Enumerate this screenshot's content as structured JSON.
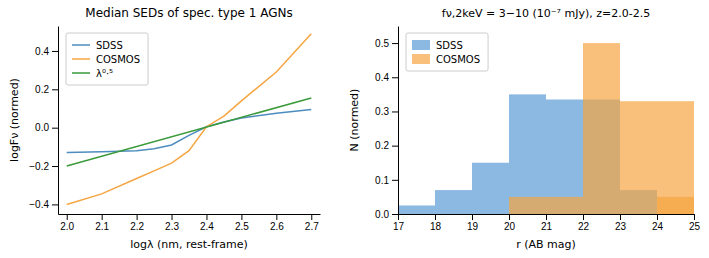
{
  "chart_data": [
    {
      "type": "line",
      "title": "Median SEDs of spec. type 1 AGNs",
      "x_label": "logλ (nm, rest-frame)",
      "y_label": "logFν (normed)",
      "xlim": [
        1.975,
        2.725
      ],
      "ylim": [
        -0.45,
        0.53
      ],
      "xticks": [
        {
          "value": 2.0,
          "label": "2.0"
        },
        {
          "value": 2.1,
          "label": "2.1"
        },
        {
          "value": 2.2,
          "label": "2.2"
        },
        {
          "value": 2.3,
          "label": "2.3"
        },
        {
          "value": 2.4,
          "label": "2.4"
        },
        {
          "value": 2.5,
          "label": "2.5"
        },
        {
          "value": 2.6,
          "label": "2.6"
        },
        {
          "value": 2.7,
          "label": "2.7"
        }
      ],
      "yticks": [
        {
          "value": -0.4,
          "label": "−0.4"
        },
        {
          "value": -0.2,
          "label": "−0.2"
        },
        {
          "value": 0.0,
          "label": "0.0"
        },
        0.2,
        0.4
      ],
      "legend": "upper left",
      "grid": false,
      "series": [
        {
          "name": "SDSS",
          "color": "#4c8cbf",
          "x": [
            2.0,
            2.1,
            2.2,
            2.25,
            2.3,
            2.35,
            2.4,
            2.45,
            2.5,
            2.6,
            2.7
          ],
          "values": [
            -0.13,
            -0.125,
            -0.12,
            -0.11,
            -0.09,
            -0.04,
            0.005,
            0.03,
            0.05,
            0.075,
            0.095
          ]
        },
        {
          "name": "COSMOS",
          "color": "#f5a542",
          "x": [
            2.0,
            2.1,
            2.2,
            2.25,
            2.3,
            2.35,
            2.4,
            2.45,
            2.5,
            2.6,
            2.7
          ],
          "values": [
            -0.4,
            -0.345,
            -0.265,
            -0.225,
            -0.185,
            -0.12,
            0.005,
            0.06,
            0.14,
            0.29,
            0.49
          ]
        },
        {
          "name": "λ⁰·⁵",
          "color": "#3a9a3a",
          "x": [
            2.0,
            2.7
          ],
          "values": [
            -0.2,
            0.155
          ]
        }
      ]
    },
    {
      "type": "histogram",
      "title": "fν,2keV = 3−10 (10⁻⁷ mJy), z=2.0-2.5",
      "x_label": "r (AB mag)",
      "y_label": "N (normed)",
      "xlim": [
        17,
        25
      ],
      "ylim": [
        0.0,
        0.55
      ],
      "xticks": [
        17,
        18,
        19,
        20,
        21,
        22,
        23,
        24,
        25
      ],
      "yticks": [
        {
          "value": 0.0,
          "label": "0.0"
        },
        0.1,
        0.2,
        0.3,
        0.4,
        0.5
      ],
      "legend": "upper left",
      "grid": false,
      "series": [
        {
          "name": "SDSS",
          "color": "#5b9bd5",
          "bins": [
            17,
            18,
            19,
            20,
            21,
            22,
            23,
            24
          ],
          "values": [
            0.025,
            0.07,
            0.15,
            0.35,
            0.335,
            0.335,
            0.07
          ]
        },
        {
          "name": "COSMOS",
          "color": "#f5a542",
          "bins": [
            20,
            21,
            22,
            23,
            24,
            25
          ],
          "values": [
            0.05,
            0.05,
            0.5,
            0.33,
            0.33
          ]
        },
        {
          "color": "#f5a542",
          "bins": [
            24,
            25
          ],
          "values": [
            0.05
          ]
        }
      ]
    }
  ]
}
